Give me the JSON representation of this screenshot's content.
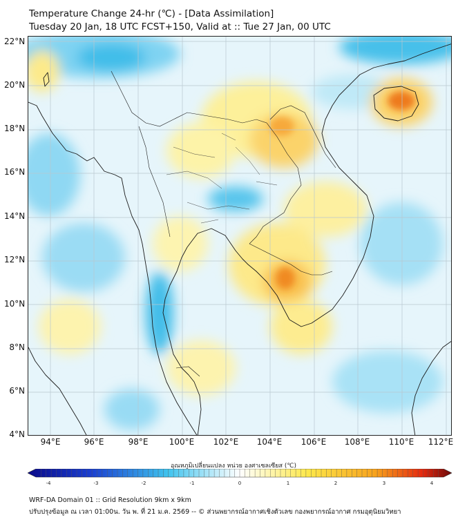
{
  "title": {
    "line1": "Temperature Change 24-hr (℃) - [Data Assimilation]",
    "line2": "Tuesday 20 Jan, 18 UTC FCST+150, Valid at :: Tue 27 Jan, 00 UTC"
  },
  "map": {
    "lat_ticks": [
      "22°N",
      "20°N",
      "18°N",
      "16°N",
      "14°N",
      "12°N",
      "10°N",
      "8°N",
      "6°N",
      "4°N"
    ],
    "lon_ticks": [
      "94°E",
      "96°E",
      "98°E",
      "100°E",
      "102°E",
      "104°E",
      "106°E",
      "108°E",
      "110°E",
      "112°E"
    ],
    "lat_range": [
      4,
      22
    ],
    "lon_range": [
      93,
      112.3
    ]
  },
  "colorbar": {
    "label": "อุณหภูมิเปลี่ยนแปลง หน่วย องศาเซลเซียส (℃)",
    "ticks": [
      "-4",
      "-3",
      "-2",
      "-1",
      "0",
      "1",
      "2",
      "3",
      "4"
    ],
    "range": [
      -4,
      4
    ],
    "colors": {
      "min": "#0a0a8a",
      "blue": "#1a3fd0",
      "cyan": "#3fc3ee",
      "light": "#ffffff",
      "yellow": "#fde84a",
      "orange": "#f7a21c",
      "red": "#e52a0f",
      "max": "#6b0a0a"
    }
  },
  "footer": {
    "line1": "WRF-DA Domain 01 :: Grid Resolution 9km x 9km",
    "line2": "ปรับปรุงข้อมูล ณ เวลา 01:00น. วัน พ. ที่ 21 ม.ค. 2569 -- © ส่วนพยากรณ์อากาศเชิงตัวเลข กองพยากรณ์อากาศ กรมอุตุนิยมวิทยา"
  }
}
